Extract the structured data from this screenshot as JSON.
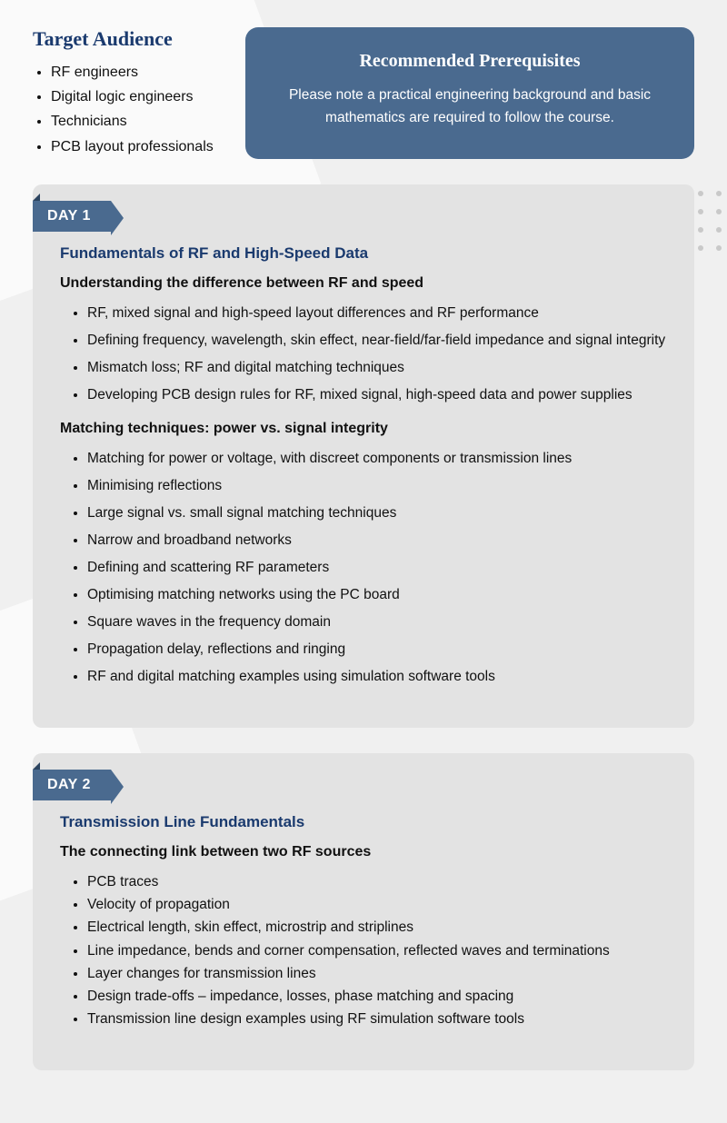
{
  "colors": {
    "accent": "#4a6a8f",
    "heading": "#1a3a6e",
    "card_bg": "#e3e3e3",
    "page_bg": "#f0f0f0"
  },
  "audience": {
    "title": "Target Audience",
    "items": [
      "RF engineers",
      "Digital logic engineers",
      "Technicians",
      "PCB layout professionals"
    ]
  },
  "prereq": {
    "title": "Recommended Prerequisites",
    "body": "Please note a practical engineering background and basic mathematics are required to follow the course."
  },
  "day1": {
    "tab": "DAY 1",
    "title": "Fundamentals of RF and High-Speed Data",
    "sub1": "Understanding the difference between RF and speed",
    "list1": [
      "RF, mixed signal and high-speed layout differences and RF performance",
      "Defining frequency, wavelength, skin effect, near-field/far-field impedance and signal integrity",
      "Mismatch loss; RF and digital matching techniques",
      "Developing PCB design rules for RF, mixed signal, high-speed data and power supplies"
    ],
    "sub2": "Matching techniques: power vs. signal integrity",
    "list2": [
      "Matching for power or voltage, with discreet components or transmission lines",
      "Minimising reflections",
      "Large signal vs. small signal matching techniques",
      "Narrow and broadband networks",
      "Defining and scattering RF parameters",
      "Optimising matching networks using the PC board",
      "Square waves in the frequency domain",
      "Propagation delay, reflections and ringing",
      "RF and digital matching examples using simulation software tools"
    ]
  },
  "day2": {
    "tab": "DAY 2",
    "title": "Transmission Line Fundamentals",
    "sub1": "The connecting link between two RF sources",
    "list1": [
      "PCB traces",
      "Velocity of propagation",
      "Electrical length, skin effect, microstrip and striplines",
      "Line impedance, bends and corner compensation, reflected waves and terminations",
      "Layer changes for transmission lines",
      "Design trade-offs – impedance, losses, phase matching and spacing",
      "Transmission line design examples using RF simulation software tools"
    ]
  }
}
